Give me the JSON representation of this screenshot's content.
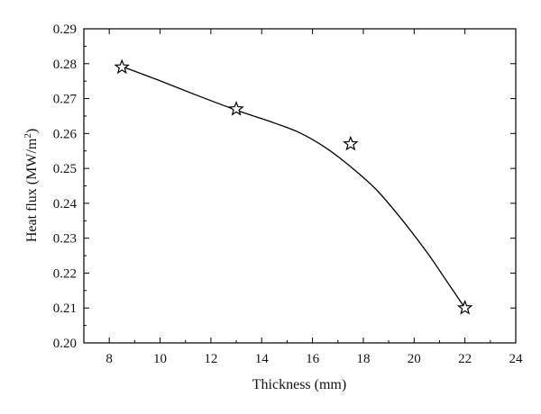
{
  "chart_data": {
    "type": "scatter",
    "xlabel": "Thickness (mm)",
    "ylabel_main": "Heat flux (MW/m",
    "ylabel_sup": "2",
    "ylabel_end": ")",
    "xlim": [
      7,
      24
    ],
    "ylim": [
      0.2,
      0.29
    ],
    "xticks": [
      8,
      10,
      12,
      14,
      16,
      18,
      20,
      22,
      24
    ],
    "yticks": [
      "0.20",
      "0.21",
      "0.22",
      "0.23",
      "0.24",
      "0.25",
      "0.26",
      "0.27",
      "0.28",
      "0.29"
    ],
    "points": [
      {
        "x": 8.5,
        "y": 0.279
      },
      {
        "x": 13.0,
        "y": 0.267
      },
      {
        "x": 17.5,
        "y": 0.257
      },
      {
        "x": 22.0,
        "y": 0.21
      }
    ],
    "fit_curve": [
      {
        "x": 8.5,
        "y": 0.2792
      },
      {
        "x": 10.0,
        "y": 0.2751
      },
      {
        "x": 11.5,
        "y": 0.2708
      },
      {
        "x": 13.0,
        "y": 0.2667
      },
      {
        "x": 14.5,
        "y": 0.263
      },
      {
        "x": 15.5,
        "y": 0.2602
      },
      {
        "x": 16.5,
        "y": 0.256
      },
      {
        "x": 17.5,
        "y": 0.2505
      },
      {
        "x": 18.5,
        "y": 0.244
      },
      {
        "x": 19.5,
        "y": 0.2355
      },
      {
        "x": 20.5,
        "y": 0.226
      },
      {
        "x": 21.3,
        "y": 0.2175
      },
      {
        "x": 22.0,
        "y": 0.21
      }
    ],
    "marker": "star",
    "grid": false,
    "line_color": "#000000"
  }
}
